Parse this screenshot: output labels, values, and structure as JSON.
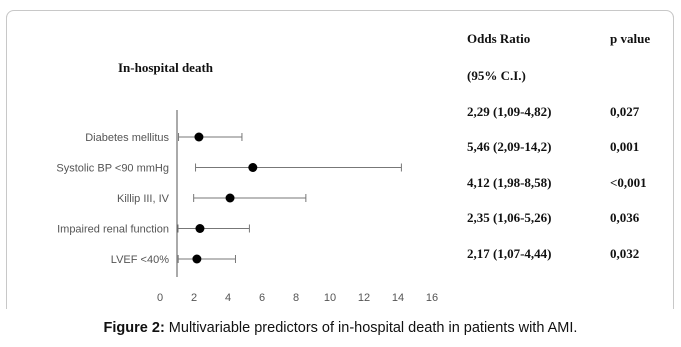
{
  "chart_data": {
    "type": "forest",
    "title": "In-hospital death",
    "categories": [
      "Diabetes mellitus",
      "Systolic BP <90 mmHg",
      "Killip III, IV",
      "Impaired renal function",
      "LVEF <40%"
    ],
    "odds_ratio": [
      2.29,
      5.46,
      4.12,
      2.35,
      2.17
    ],
    "ci_low": [
      1.09,
      2.09,
      1.98,
      1.06,
      1.07
    ],
    "ci_high": [
      4.82,
      14.2,
      8.58,
      5.26,
      4.44
    ],
    "xlim": [
      0,
      16
    ],
    "xticks": [
      0,
      2,
      4,
      6,
      8,
      10,
      12,
      14,
      16
    ]
  },
  "table": {
    "headers": [
      "Odds Ratio",
      "p value"
    ],
    "subheader": "(95% C.I.)",
    "rows": [
      {
        "or_ci": "2,29 (1,09-4,82)",
        "p": "0,027"
      },
      {
        "or_ci": "5,46 (2,09-14,2)",
        "p": "0,001"
      },
      {
        "or_ci": "4,12 (1,98-8,58)",
        "p": "<0,001"
      },
      {
        "or_ci": "2,35 (1,06-5,26)",
        "p": "0,036"
      },
      {
        "or_ci": "2,17 (1,07-4,44)",
        "p": "0,032"
      }
    ]
  },
  "caption": {
    "label": "Figure 2:",
    "text": " Multivariable predictors of in-hospital death in patients with AMI."
  }
}
